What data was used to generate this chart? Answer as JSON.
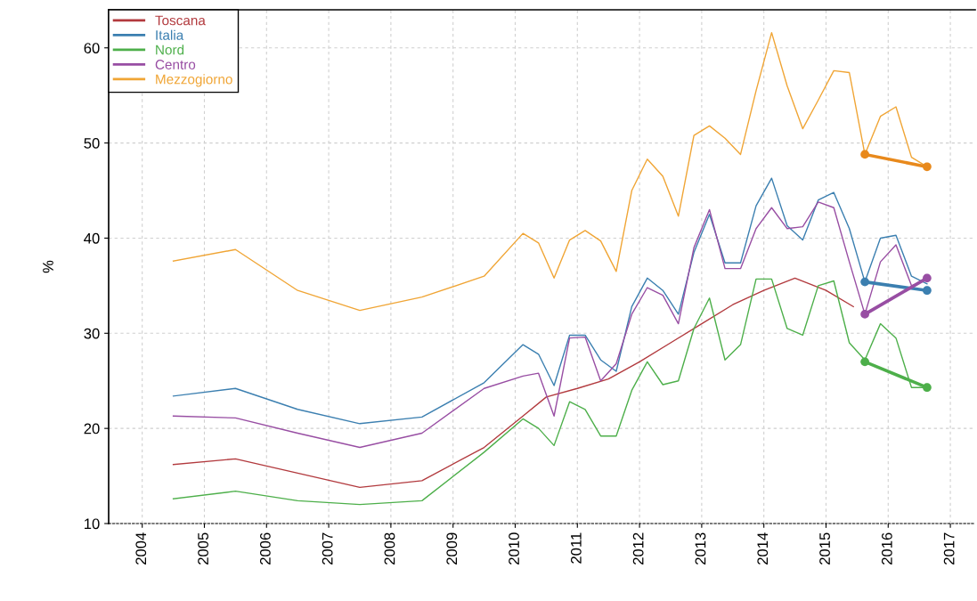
{
  "chart_data": {
    "type": "line",
    "ylabel": "%",
    "xlim": [
      2003.46,
      2017.4
    ],
    "ylim": [
      10,
      64
    ],
    "xticks": [
      2004,
      2005,
      2006,
      2007,
      2008,
      2009,
      2010,
      2011,
      2012,
      2013,
      2014,
      2015,
      2016,
      2017
    ],
    "yticks": [
      10,
      20,
      30,
      40,
      50,
      60
    ],
    "grid": true,
    "legend": "top left",
    "marker": "none",
    "line_style": "solid",
    "series": [
      {
        "name": "Toscana",
        "color": "#b23a3e",
        "x": [
          2004.5,
          2005.5,
          2006.5,
          2007.5,
          2008.5,
          2009.5,
          2010.125,
          2010.5,
          2011.0,
          2011.5,
          2012.0,
          2012.5,
          2013.0,
          2013.5,
          2014.0,
          2014.5,
          2015.0,
          2015.44
        ],
        "values": [
          16.2,
          16.8,
          15.3,
          13.8,
          14.5,
          18.0,
          21.3,
          23.3,
          24.2,
          25.2,
          27.0,
          29.0,
          31.0,
          33.0,
          34.5,
          35.8,
          34.5,
          32.8
        ]
      },
      {
        "name": "Italia",
        "color": "#3b7fb0",
        "x": [
          2004.5,
          2005.5,
          2006.5,
          2007.5,
          2008.5,
          2009.5,
          2010.125,
          2010.375,
          2010.625,
          2010.875,
          2011.125,
          2011.375,
          2011.625,
          2011.875,
          2012.125,
          2012.375,
          2012.625,
          2012.875,
          2013.125,
          2013.375,
          2013.625,
          2013.875,
          2014.125,
          2014.375,
          2014.625,
          2014.875,
          2015.125,
          2015.375,
          2015.625,
          2015.875,
          2016.125,
          2016.375,
          2016.625
        ],
        "values": [
          23.4,
          24.2,
          22.0,
          20.5,
          21.2,
          24.8,
          28.8,
          27.8,
          24.5,
          29.8,
          29.8,
          27.2,
          26.0,
          32.8,
          35.8,
          34.5,
          32.0,
          38.5,
          42.5,
          37.4,
          37.4,
          43.4,
          46.3,
          41.3,
          39.8,
          44.0,
          44.8,
          41.0,
          35.4,
          40.0,
          40.3,
          36.0,
          35.2
        ]
      },
      {
        "name": "Nord",
        "color": "#4daf4a",
        "x": [
          2004.5,
          2005.5,
          2006.5,
          2007.5,
          2008.5,
          2009.5,
          2010.125,
          2010.375,
          2010.625,
          2010.875,
          2011.125,
          2011.375,
          2011.625,
          2011.875,
          2012.125,
          2012.375,
          2012.625,
          2012.875,
          2013.125,
          2013.375,
          2013.625,
          2013.875,
          2014.125,
          2014.375,
          2014.625,
          2014.875,
          2015.125,
          2015.375,
          2015.625,
          2015.875,
          2016.125,
          2016.375,
          2016.625
        ],
        "values": [
          12.6,
          13.4,
          12.4,
          12.0,
          12.4,
          17.5,
          21.0,
          20.0,
          18.2,
          22.8,
          22.0,
          19.2,
          19.2,
          24.0,
          27.0,
          24.6,
          25.0,
          30.5,
          33.7,
          27.2,
          28.8,
          35.7,
          35.7,
          30.5,
          29.8,
          35.0,
          35.5,
          29.0,
          27.2,
          31.0,
          29.5,
          24.3,
          24.3
        ]
      },
      {
        "name": "Centro",
        "color": "#984ea3",
        "x": [
          2004.5,
          2005.5,
          2006.5,
          2007.5,
          2008.5,
          2009.5,
          2010.125,
          2010.375,
          2010.625,
          2010.875,
          2011.125,
          2011.375,
          2011.625,
          2011.875,
          2012.125,
          2012.375,
          2012.625,
          2012.875,
          2013.125,
          2013.375,
          2013.625,
          2013.875,
          2014.125,
          2014.375,
          2014.625,
          2014.875,
          2015.125,
          2015.375,
          2015.625,
          2015.875,
          2016.125,
          2016.375,
          2016.625
        ],
        "values": [
          21.3,
          21.1,
          19.5,
          18.0,
          19.5,
          24.2,
          25.5,
          25.8,
          21.3,
          29.5,
          29.6,
          25.0,
          26.8,
          32.0,
          34.8,
          34.0,
          31.0,
          39.0,
          43.0,
          36.8,
          36.8,
          41.0,
          43.2,
          41.0,
          41.2,
          43.8,
          43.2,
          37.5,
          32.0,
          37.5,
          39.3,
          35.0,
          35.6
        ]
      },
      {
        "name": "Mezzogiorno",
        "color": "#f0a535",
        "x": [
          2004.5,
          2005.5,
          2006.5,
          2007.5,
          2008.5,
          2009.5,
          2010.125,
          2010.375,
          2010.625,
          2010.875,
          2011.125,
          2011.375,
          2011.625,
          2011.875,
          2012.125,
          2012.375,
          2012.625,
          2012.875,
          2013.125,
          2013.375,
          2013.625,
          2013.875,
          2014.125,
          2014.375,
          2014.625,
          2014.875,
          2015.125,
          2015.375,
          2015.625,
          2015.875,
          2016.125,
          2016.375,
          2016.625
        ],
        "values": [
          37.6,
          38.8,
          34.5,
          32.4,
          33.8,
          36.0,
          40.5,
          39.5,
          35.8,
          39.8,
          40.8,
          39.7,
          36.5,
          45.0,
          48.3,
          46.5,
          42.3,
          50.8,
          51.8,
          50.5,
          48.8,
          55.5,
          61.6,
          56.0,
          51.5,
          54.5,
          57.6,
          57.4,
          48.8,
          52.8,
          53.8,
          48.5,
          47.5
        ]
      },
      {
        "color": "#3b7fb0",
        "marker": "circle",
        "x": [
          2015.625,
          2016.625
        ],
        "values": [
          35.4,
          34.5
        ]
      },
      {
        "color": "#984ea3",
        "marker": "circle",
        "x": [
          2015.625,
          2016.625
        ],
        "values": [
          32.0,
          35.8
        ]
      },
      {
        "color": "#4daf4a",
        "marker": "circle",
        "x": [
          2015.625,
          2016.625
        ],
        "values": [
          27.0,
          24.3
        ]
      },
      {
        "color": "#e8891c",
        "marker": "circle",
        "x": [
          2015.625,
          2016.625
        ],
        "values": [
          48.8,
          47.5
        ]
      }
    ]
  }
}
